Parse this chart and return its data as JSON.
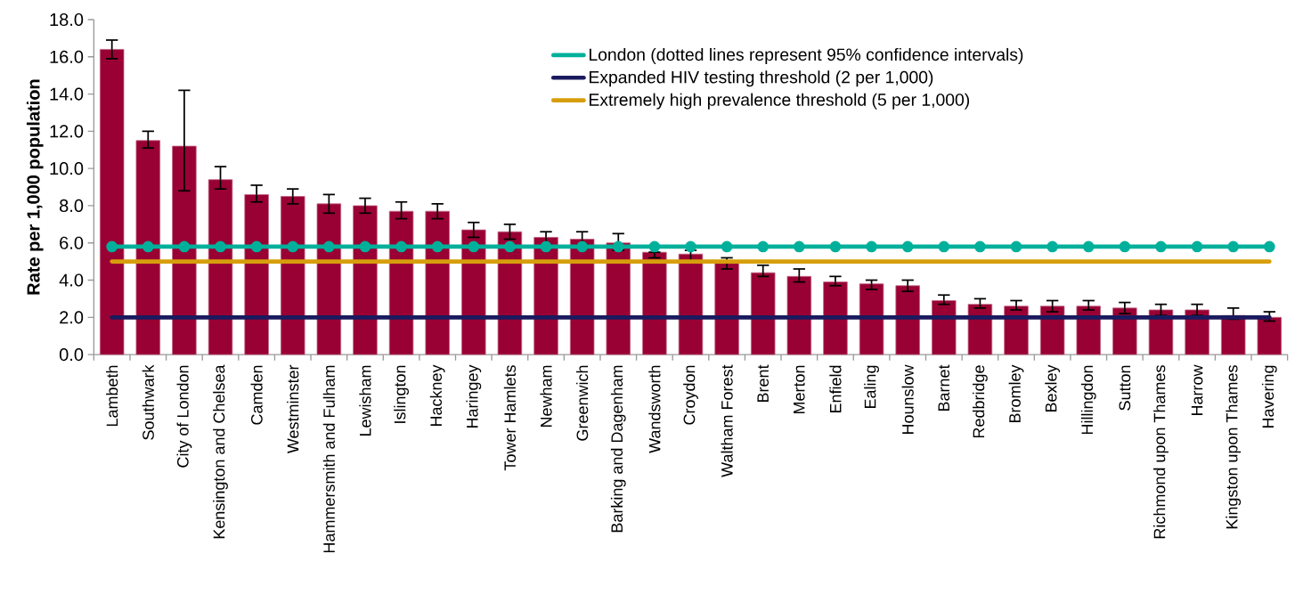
{
  "chart_data": {
    "type": "bar",
    "ylabel": "Rate per 1,000 population",
    "categories": [
      "Lambeth",
      "Southwark",
      "City of London",
      "Kensington and Chelsea",
      "Camden",
      "Westminster",
      "Hammersmith and Fulham",
      "Lewisham",
      "Islington",
      "Hackney",
      "Haringey",
      "Tower Hamlets",
      "Newham",
      "Greenwich",
      "Barking and Dagenham",
      "Wandsworth",
      "Croydon",
      "Waltham Forest",
      "Brent",
      "Merton",
      "Enfield",
      "Ealing",
      "Hounslow",
      "Barnet",
      "Redbridge",
      "Bromley",
      "Bexley",
      "Hillingdon",
      "Sutton",
      "Richmond upon Thames",
      "Harrow",
      "Kingston upon Thames",
      "Havering"
    ],
    "series": [
      {
        "color": "#990033",
        "values": [
          16.4,
          11.5,
          11.2,
          9.4,
          8.6,
          8.5,
          8.1,
          8.0,
          7.7,
          7.7,
          6.7,
          6.6,
          6.3,
          6.2,
          6.0,
          5.5,
          5.4,
          4.9,
          4.4,
          4.2,
          3.9,
          3.8,
          3.7,
          2.9,
          2.7,
          2.6,
          2.6,
          2.6,
          2.5,
          2.4,
          2.4,
          2.1,
          2.0
        ],
        "errors": [
          [
            15.9,
            16.9
          ],
          [
            11.1,
            12.0
          ],
          [
            8.8,
            14.2
          ],
          [
            8.9,
            10.1
          ],
          [
            8.2,
            9.1
          ],
          [
            8.1,
            8.9
          ],
          [
            7.6,
            8.6
          ],
          [
            7.6,
            8.4
          ],
          [
            7.3,
            8.2
          ],
          [
            7.3,
            8.1
          ],
          [
            6.3,
            7.1
          ],
          [
            6.2,
            7.0
          ],
          [
            5.9,
            6.6
          ],
          [
            5.9,
            6.6
          ],
          [
            5.6,
            6.5
          ],
          [
            5.2,
            5.5
          ],
          [
            5.0,
            5.6
          ],
          [
            4.6,
            5.2
          ],
          [
            4.2,
            4.8
          ],
          [
            3.9,
            4.6
          ],
          [
            3.7,
            4.2
          ],
          [
            3.5,
            4.0
          ],
          [
            3.4,
            4.0
          ],
          [
            2.7,
            3.2
          ],
          [
            2.5,
            3.0
          ],
          [
            2.4,
            2.9
          ],
          [
            2.3,
            2.9
          ],
          [
            2.4,
            2.9
          ],
          [
            2.2,
            2.8
          ],
          [
            2.1,
            2.7
          ],
          [
            2.1,
            2.7
          ],
          [
            1.9,
            2.5
          ],
          [
            1.8,
            2.3
          ]
        ]
      },
      {
        "name": "London (dotted lines represent 95% confidence intervals)",
        "type": "line",
        "color": "#00b09b",
        "marker": "circle",
        "values": [
          5.8,
          5.8,
          5.8,
          5.8,
          5.8,
          5.8,
          5.8,
          5.8,
          5.8,
          5.8,
          5.8,
          5.8,
          5.8,
          5.8,
          5.8,
          5.8,
          5.8,
          5.8,
          5.8,
          5.8,
          5.8,
          5.8,
          5.8,
          5.8,
          5.8,
          5.8,
          5.8,
          5.8,
          5.8,
          5.8,
          5.8,
          5.8,
          5.8
        ]
      },
      {
        "name": "Expanded HIV testing threshold (2 per 1,000)",
        "type": "line",
        "color": "#1a1a5e",
        "values": [
          2,
          2,
          2,
          2,
          2,
          2,
          2,
          2,
          2,
          2,
          2,
          2,
          2,
          2,
          2,
          2,
          2,
          2,
          2,
          2,
          2,
          2,
          2,
          2,
          2,
          2,
          2,
          2,
          2,
          2,
          2,
          2,
          2
        ]
      },
      {
        "name": "Extremely high prevalence threshold (5 per 1,000)",
        "type": "line",
        "color": "#d69e0a",
        "values": [
          5,
          5,
          5,
          5,
          5,
          5,
          5,
          5,
          5,
          5,
          5,
          5,
          5,
          5,
          5,
          5,
          5,
          5,
          5,
          5,
          5,
          5,
          5,
          5,
          5,
          5,
          5,
          5,
          5,
          5,
          5,
          5,
          5
        ]
      }
    ],
    "ylim": [
      0,
      18
    ],
    "yticks": [
      {
        "value": 0,
        "label": "0.0"
      },
      {
        "value": 2,
        "label": "2.0"
      },
      {
        "value": 4,
        "label": "4.0"
      },
      {
        "value": 6,
        "label": "6.0"
      },
      {
        "value": 8,
        "label": "8.0"
      },
      {
        "value": 10,
        "label": "10.0"
      },
      {
        "value": 12,
        "label": "12.0"
      },
      {
        "value": 14,
        "label": "14.0"
      },
      {
        "value": 16,
        "label": "16.0"
      },
      {
        "value": 18,
        "label": "18.0"
      }
    ],
    "legend": "top right"
  }
}
